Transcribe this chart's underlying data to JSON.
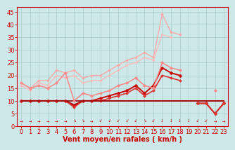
{
  "background_color": "#cce8e8",
  "grid_color": "#aacccc",
  "xlabel": "Vent moyen/en rafales ( km/h )",
  "xlabel_color": "#cc0000",
  "xlabel_fontsize": 7,
  "tick_color": "#cc0000",
  "tick_fontsize": 6,
  "ylim": [
    0,
    47
  ],
  "xlim": [
    -0.5,
    23.5
  ],
  "yticks": [
    0,
    5,
    10,
    15,
    20,
    25,
    30,
    35,
    40,
    45
  ],
  "xticks": [
    0,
    1,
    2,
    3,
    4,
    5,
    6,
    7,
    8,
    9,
    10,
    11,
    12,
    13,
    14,
    15,
    16,
    17,
    18,
    19,
    20,
    21,
    22,
    23
  ],
  "lines": [
    {
      "comment": "light pink - rafales line (highest), goes up to ~44",
      "x": [
        0,
        1,
        2,
        3,
        4,
        5,
        6,
        7,
        8,
        9,
        10,
        11,
        12,
        13,
        14,
        15,
        16,
        17,
        18,
        19,
        20,
        21,
        22,
        23
      ],
      "y": [
        17,
        15,
        18,
        18,
        22,
        21,
        22,
        19,
        20,
        20,
        22,
        24,
        26,
        27,
        29,
        27,
        44,
        37,
        36,
        null,
        null,
        null,
        14,
        null
      ],
      "color": "#ffaaaa",
      "lw": 1.0,
      "marker": "D",
      "ms": 2.0
    },
    {
      "comment": "medium pink - second highest line",
      "x": [
        0,
        1,
        2,
        3,
        4,
        5,
        6,
        7,
        8,
        9,
        10,
        11,
        12,
        13,
        14,
        15,
        16,
        17,
        18,
        19,
        20,
        21,
        22,
        23
      ],
      "y": [
        16,
        14,
        17,
        16,
        20,
        19,
        20,
        17,
        18,
        18,
        20,
        22,
        24,
        25,
        27,
        26,
        36,
        35,
        null,
        null,
        null,
        null,
        14,
        null
      ],
      "color": "#ffbbbb",
      "lw": 1.0,
      "marker": "D",
      "ms": 1.8
    },
    {
      "comment": "medium-dark red with markers - main wind line",
      "x": [
        0,
        1,
        2,
        3,
        4,
        5,
        6,
        7,
        8,
        9,
        10,
        11,
        12,
        13,
        14,
        15,
        16,
        17,
        18,
        19,
        20,
        21,
        22,
        23
      ],
      "y": [
        10,
        10,
        10,
        10,
        10,
        10,
        8,
        10,
        10,
        11,
        12,
        13,
        14,
        16,
        13,
        16,
        23,
        21,
        20,
        null,
        9,
        9,
        5,
        9
      ],
      "color": "#cc0000",
      "lw": 1.4,
      "marker": "D",
      "ms": 2.5
    },
    {
      "comment": "dark red - slightly below main",
      "x": [
        0,
        1,
        2,
        3,
        4,
        5,
        6,
        7,
        8,
        9,
        10,
        11,
        12,
        13,
        14,
        15,
        16,
        17,
        18,
        19,
        20,
        21,
        22,
        23
      ],
      "y": [
        10,
        10,
        10,
        10,
        10,
        10,
        7.5,
        10,
        10,
        10,
        11,
        12,
        13,
        15,
        12,
        14,
        20,
        19,
        18,
        null,
        9,
        9,
        5,
        9
      ],
      "color": "#dd3333",
      "lw": 1.2,
      "marker": "D",
      "ms": 2.0
    },
    {
      "comment": "very dark flat line near 10",
      "x": [
        0,
        1,
        2,
        3,
        4,
        5,
        6,
        7,
        8,
        9,
        10,
        11,
        12,
        13,
        14,
        15,
        16,
        17,
        18,
        19,
        20,
        21,
        22,
        23
      ],
      "y": [
        10,
        10,
        10,
        10,
        10,
        10,
        10,
        10,
        10,
        10,
        10,
        10,
        10,
        10,
        10,
        10,
        10,
        10,
        10,
        10,
        10,
        10,
        10,
        10
      ],
      "color": "#880000",
      "lw": 1.2,
      "marker": null,
      "ms": 0
    },
    {
      "comment": "dark line slightly below 10 with small dip at 6",
      "x": [
        0,
        1,
        2,
        3,
        4,
        5,
        6,
        7,
        8,
        9,
        10,
        11,
        12,
        13,
        14,
        15,
        16,
        17,
        18,
        19,
        20,
        21,
        22,
        23
      ],
      "y": [
        10,
        10,
        10,
        10,
        10,
        10,
        8.5,
        10,
        10,
        10,
        10,
        10,
        10,
        10,
        10,
        10,
        10,
        10,
        10,
        10,
        10,
        10,
        10,
        10
      ],
      "color": "#aa0000",
      "lw": 1.0,
      "marker": null,
      "ms": 0
    },
    {
      "comment": "pink triangle line - starts high ~17, dips at 6, rises to peak around 16",
      "x": [
        0,
        1,
        2,
        3,
        4,
        5,
        6,
        7,
        8,
        9,
        10,
        11,
        12,
        13,
        14,
        15,
        16,
        17,
        18,
        19,
        20,
        21,
        22,
        23
      ],
      "y": [
        17,
        15,
        16,
        15,
        17,
        21,
        10,
        13,
        12,
        13,
        14,
        16,
        17,
        19,
        16,
        15,
        25,
        23,
        22,
        null,
        null,
        null,
        14,
        null
      ],
      "color": "#ff8888",
      "lw": 1.1,
      "marker": "D",
      "ms": 2.2
    }
  ],
  "wind_arrows": [
    "→",
    "→",
    "→",
    "→",
    "→",
    "→",
    "↘",
    "↘",
    "→",
    "↙",
    "↙",
    "↙",
    "↙",
    "↙",
    "↘",
    "↙",
    "↓",
    "↓",
    "↓",
    "↓",
    "↙",
    "↙",
    "→",
    "→"
  ],
  "arrow_color": "#cc0000"
}
